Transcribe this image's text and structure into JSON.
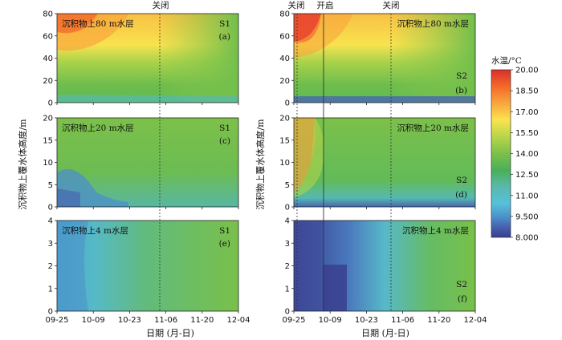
{
  "colorbar": {
    "title": "水温/°C",
    "ticks": [
      "20.00",
      "18.50",
      "17.00",
      "15.50",
      "14.00",
      "12.50",
      "11.00",
      "9.500",
      "8.000"
    ],
    "stops": [
      "#d7302c",
      "#f4692a",
      "#f9a63c",
      "#fbe34f",
      "#b7d54a",
      "#7cc04a",
      "#49af59",
      "#5ab9ae",
      "#56c0d9",
      "#4c8fc9",
      "#4660ad",
      "#3a3f8e"
    ]
  },
  "axes": {
    "x_ticks": [
      "09-25",
      "10-09",
      "10-23",
      "11-06",
      "11-20",
      "12-04"
    ],
    "x_title": "日期 (月-日)",
    "y_title": "沉积物上覆水体高度/m"
  },
  "annotations": {
    "left_close": "关闭",
    "right_close1": "关闭",
    "right_open": "开启",
    "right_close2": "关闭"
  },
  "chart_data": [
    {
      "type": "heatmap",
      "panel": "a",
      "station": "S1",
      "layer_label": "沉积物上80 m水层",
      "ylim": [
        0,
        80
      ],
      "y_ticks": [
        0,
        20,
        40,
        60,
        80
      ]
    },
    {
      "type": "heatmap",
      "panel": "b",
      "station": "S2",
      "layer_label": "沉积物上80 m水层",
      "ylim": [
        0,
        80
      ],
      "y_ticks": [
        0,
        20,
        40,
        60,
        80
      ]
    },
    {
      "type": "heatmap",
      "panel": "c",
      "station": "S1",
      "layer_label": "沉积物上20 m水层",
      "ylim": [
        0,
        20
      ],
      "y_ticks": [
        0,
        5,
        10,
        15,
        20
      ]
    },
    {
      "type": "heatmap",
      "panel": "d",
      "station": "S2",
      "layer_label": "沉积物上20 m水层",
      "ylim": [
        0,
        20
      ],
      "y_ticks": [
        0,
        5,
        10,
        15,
        20
      ]
    },
    {
      "type": "heatmap",
      "panel": "e",
      "station": "S1",
      "layer_label": "沉积物上4 m水层",
      "ylim": [
        0,
        4
      ],
      "y_ticks": [
        0,
        1,
        2,
        3,
        4
      ]
    },
    {
      "type": "heatmap",
      "panel": "f",
      "station": "S2",
      "layer_label": "沉积物上4 m水层",
      "ylim": [
        0,
        4
      ],
      "y_ticks": [
        0,
        1,
        2,
        3,
        4
      ]
    }
  ],
  "panel_labels": {
    "a": {
      "station": "S1",
      "letter": "(a)",
      "layer": "沉积物上80 m水层"
    },
    "b": {
      "station": "S2",
      "letter": "(b)",
      "layer": "沉积物上80 m水层"
    },
    "c": {
      "station": "S1",
      "letter": "(c)",
      "layer": "沉积物上20 m水层"
    },
    "d": {
      "station": "S2",
      "letter": "(d)",
      "layer": "沉积物上20 m水层"
    },
    "e": {
      "station": "S1",
      "letter": "(e)",
      "layer": "沉积物上4 m水层"
    },
    "f": {
      "station": "S2",
      "letter": "(f)",
      "layer": "沉积物上4 m水层"
    }
  }
}
